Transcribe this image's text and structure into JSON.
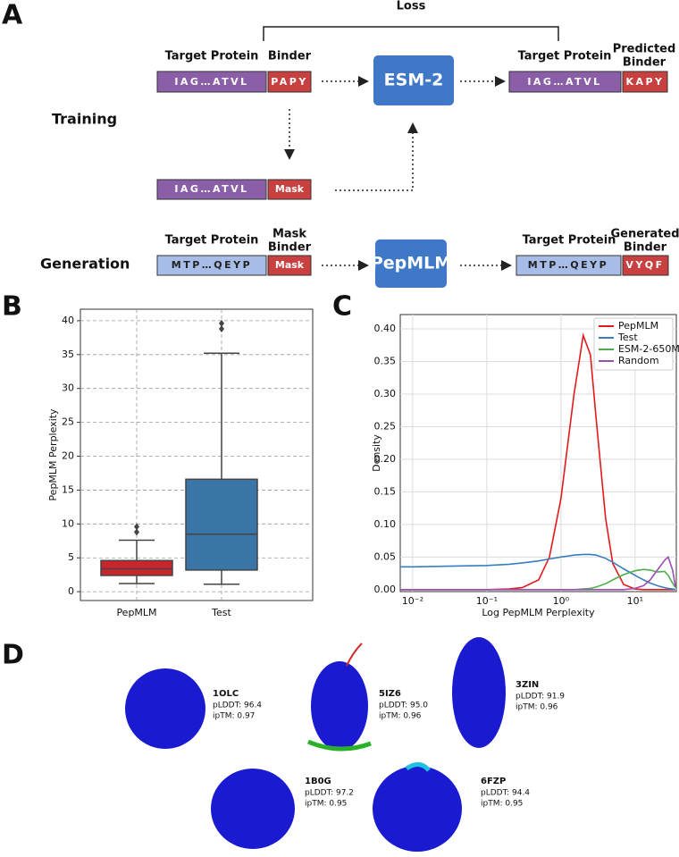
{
  "panel_labels": [
    "A",
    "B",
    "C",
    "D"
  ],
  "panel_a": {
    "loss": "Loss",
    "training": "Training",
    "generation": "Generation",
    "training_row": {
      "target_header": "Target Protein",
      "binder_header": "Binder",
      "target_seq": "IAG…ATVL",
      "binder_seq": "PAPY",
      "model": "ESM-2",
      "out_target_header": "Target Protein",
      "out_binder_header": [
        "Predicted",
        "Binder"
      ],
      "out_target_seq": "IAG…ATVL",
      "out_binder_seq": "KAPY"
    },
    "mask_row": {
      "target_seq": "IAG…ATVL",
      "binder_seq": "Mask"
    },
    "generation_row": {
      "target_header": "Target Protein",
      "binder_header": [
        "Mask",
        "Binder"
      ],
      "target_seq": "MTP…QEYP",
      "binder_seq": "Mask",
      "model": "PepMLM",
      "out_target_header": "Target Protein",
      "out_binder_header": [
        "Generated",
        "Binder"
      ],
      "out_target_seq": "MTP…QEYP",
      "out_binder_seq": "VYQF"
    }
  },
  "chart_data": [
    {
      "type": "box",
      "ylabel": "PepMLM Perplexity",
      "categories": [
        "PepMLM",
        "Test"
      ],
      "boxes": [
        {
          "whislo": 1.2,
          "q1": 2.4,
          "med": 3.4,
          "q3": 4.6,
          "whishi": 7.6,
          "fliers": [
            8.8,
            9.6
          ],
          "color": "#c9252d"
        },
        {
          "whislo": 1.1,
          "q1": 3.2,
          "med": 8.5,
          "q3": 16.6,
          "whishi": 35.2,
          "fliers": [
            38.8,
            39.6
          ],
          "color": "#3a75a8"
        }
      ],
      "ylim": [
        -1.3,
        41.7
      ],
      "yticks": [
        0,
        5,
        10,
        15,
        20,
        25,
        30,
        35,
        40
      ],
      "grid": true
    },
    {
      "type": "line",
      "xlabel": "Log PepMLM Perplexity",
      "ylabel": "Density",
      "log_x": true,
      "grid": true,
      "legend": "upper right",
      "x": [
        0.0068,
        0.01,
        0.03,
        0.1,
        0.2,
        0.3,
        0.5,
        0.7,
        1,
        1.5,
        2,
        2.5,
        3,
        4,
        5,
        7,
        10,
        13,
        16,
        20,
        25,
        28,
        32,
        35
      ],
      "series": [
        {
          "name": "PepMLM",
          "color": "#e31a1c",
          "values": [
            0,
            0,
            0,
            0,
            0.001,
            0.003,
            0.015,
            0.05,
            0.14,
            0.3,
            0.39,
            0.36,
            0.26,
            0.11,
            0.04,
            0.008,
            0.001,
            0,
            0,
            0,
            0,
            0,
            0,
            0
          ]
        },
        {
          "name": "Test",
          "color": "#3a7dc0",
          "values": [
            0.035,
            0.035,
            0.036,
            0.037,
            0.039,
            0.041,
            0.044,
            0.047,
            0.05,
            0.053,
            0.054,
            0.054,
            0.053,
            0.048,
            0.042,
            0.032,
            0.022,
            0.015,
            0.01,
            0.006,
            0.003,
            0.002,
            0.001,
            0
          ]
        },
        {
          "name": "ESM-2-650M",
          "color": "#4daf4a",
          "values": [
            0,
            0,
            0,
            0,
            0,
            0,
            0,
            0,
            0,
            0,
            0.001,
            0.002,
            0.004,
            0.009,
            0.015,
            0.023,
            0.029,
            0.031,
            0.03,
            0.027,
            0.028,
            0.022,
            0.01,
            0.003
          ]
        },
        {
          "name": "Random",
          "color": "#9b4fb5",
          "values": [
            0,
            0,
            0,
            0,
            0,
            0,
            0,
            0,
            0,
            0,
            0,
            0,
            0,
            0,
            0,
            0,
            0.002,
            0.006,
            0.015,
            0.03,
            0.045,
            0.05,
            0.03,
            0.005
          ]
        }
      ],
      "xlim": [
        0.0068,
        36
      ],
      "xticks": [
        {
          "value": 0.01,
          "label": "10⁻²"
        },
        {
          "value": 0.1,
          "label": "10⁻¹"
        },
        {
          "value": 1,
          "label": "10⁰"
        },
        {
          "value": 10,
          "label": "10¹"
        }
      ],
      "ylim": [
        -0.003,
        0.422
      ],
      "yticks": [
        {
          "value": 0,
          "label": "0.00"
        },
        {
          "value": 0.05,
          "label": "0.05"
        },
        {
          "value": 0.1,
          "label": "0.10"
        },
        {
          "value": 0.15,
          "label": "0.15"
        },
        {
          "value": 0.2,
          "label": "0.20"
        },
        {
          "value": 0.25,
          "label": "0.25"
        },
        {
          "value": 0.3,
          "label": "0.30"
        },
        {
          "value": 0.35,
          "label": "0.35"
        },
        {
          "value": 0.4,
          "label": "0.40"
        }
      ]
    }
  ],
  "structures": [
    {
      "id": "1OLC",
      "plddt": "pLDDT: 96.4",
      "iptm": "ipTM: 0.97"
    },
    {
      "id": "5IZ6",
      "plddt": "pLDDT: 95.0",
      "iptm": "ipTM: 0.96"
    },
    {
      "id": "3ZIN",
      "plddt": "pLDDT: 91.9",
      "iptm": "ipTM: 0.96"
    },
    {
      "id": "1B0G",
      "plddt": "pLDDT: 97.2",
      "iptm": "ipTM: 0.95"
    },
    {
      "id": "6FZP",
      "plddt": "pLDDT: 94.4",
      "iptm": "ipTM: 0.95"
    }
  ]
}
